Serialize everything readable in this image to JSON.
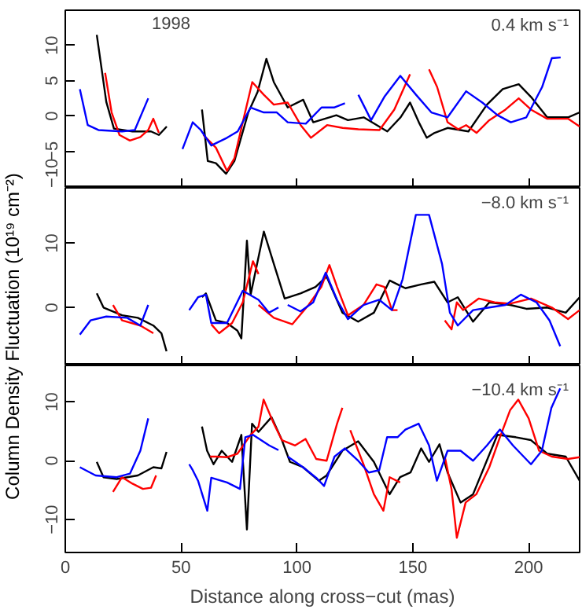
{
  "chart_data": [
    {
      "type": "line",
      "annotations": [
        "1998",
        "0.4 km s⁻¹"
      ],
      "xlim": [
        0,
        222
      ],
      "xticks": [
        0,
        50,
        100,
        150,
        200
      ],
      "ylim": [
        -10.2,
        15
      ],
      "yticks": [
        -10,
        -5,
        0,
        5,
        10
      ],
      "tick_labels": "y",
      "grid": false,
      "series": [
        {
          "color": "#000000",
          "x": [
            13.6,
            17.7,
            21,
            29,
            37,
            40.4,
            43.8,
            null,
            59,
            61.5,
            65,
            69.4,
            73,
            79,
            83,
            86.8,
            90,
            96,
            102.7,
            107,
            117,
            122,
            128.8,
            139,
            144.7,
            148.8,
            152.6,
            156,
            159.4,
            165,
            174,
            182,
            188.8,
            195.7,
            201,
            208,
            217,
            222
          ],
          "values": [
            11.5,
            2,
            -1.8,
            -2.2,
            -2.2,
            -2.7,
            -1.5,
            null,
            0.9,
            -6.4,
            -6.7,
            -8.2,
            -6.4,
            0.5,
            3.4,
            8.1,
            4.8,
            1.2,
            2.3,
            -0.9,
            0.1,
            -0.6,
            -0.2,
            -2.2,
            -0.2,
            1.9,
            -0.9,
            -3.1,
            -2.4,
            -1.7,
            -2.2,
            1.6,
            3.8,
            4.5,
            2.7,
            -0.2,
            -0.2,
            0.5
          ]
        },
        {
          "color": "#ff0000",
          "x": [
            17.2,
            20,
            23.4,
            27.9,
            32.4,
            35.8,
            38,
            40.4,
            null,
            59.6,
            65,
            69.8,
            73,
            76.6,
            80.7,
            85.7,
            90,
            96,
            101.6,
            106,
            113,
            119.7,
            126.5,
            135.6,
            142,
            148.8,
            null,
            157,
            160.5,
            165,
            169.6,
            173,
            177.5,
            183,
            190,
            195.7,
            201,
            208,
            217,
            222
          ],
          "values": [
            6.1,
            0.5,
            -2.7,
            -3.5,
            -3,
            -2,
            -0.4,
            -2.4,
            null,
            -2.7,
            -4.5,
            -7.8,
            -6,
            -0.9,
            4.8,
            3,
            1.6,
            1.9,
            -1.3,
            -3.1,
            -1.3,
            -1.7,
            -1.9,
            -2,
            0.9,
            5.9,
            null,
            6.6,
            4.1,
            -0.9,
            -1.9,
            -1.3,
            -2.4,
            -0.6,
            0.9,
            2.5,
            0.9,
            -0.4,
            -0.4,
            -1.5
          ]
        },
        {
          "color": "#0000ff",
          "x": [
            6.3,
            9.7,
            14.3,
            24.5,
            30,
            35.8,
            null,
            50.6,
            55,
            58.5,
            63,
            69.8,
            74.4,
            80,
            85.7,
            91.3,
            96,
            103.8,
            110.6,
            116,
            120.7,
            null,
            126.5,
            132,
            137.7,
            144.6,
            151.4,
            158,
            165,
            173,
            180,
            186.6,
            192.3,
            199,
            205.8,
            210,
            213.8
          ],
          "values": [
            3.8,
            -1.3,
            -2,
            -2.2,
            -2,
            2.5,
            null,
            -4.7,
            -0.9,
            -2,
            -4.2,
            -3.1,
            -2.2,
            1.2,
            0.5,
            0.5,
            -0.9,
            -1.1,
            1.2,
            1.2,
            1.8,
            null,
            3,
            -0.6,
            2.7,
            5.7,
            3,
            0.5,
            -0.2,
            3.5,
            1.9,
            0.1,
            -0.9,
            -0.2,
            4.1,
            8.2,
            8.3
          ]
        }
      ]
    },
    {
      "type": "line",
      "annotations": [
        "−8.0 km s⁻¹"
      ],
      "ylabel": "Column Density Fluctuation (10¹⁹ cm⁻²)",
      "xlim": [
        0,
        222
      ],
      "xticks": [
        0,
        50,
        100,
        150,
        200
      ],
      "ylim": [
        -9,
        18.6
      ],
      "yticks": [
        0,
        10
      ],
      "tick_labels": "y",
      "grid": false,
      "series": [
        {
          "color": "#000000",
          "x": [
            13.6,
            16.5,
            24.5,
            31.3,
            38,
            41.5,
            43.7,
            null,
            59,
            60.7,
            65,
            69.8,
            74.3,
            76,
            78.4,
            80,
            85.7,
            90,
            94.7,
            101.5,
            108,
            112.8,
            119.6,
            126.4,
            133.2,
            140,
            146.8,
            153.6,
            159.3,
            165,
            169.4,
            176,
            183,
            192,
            199,
            208,
            216,
            222
          ],
          "values": [
            2.2,
            0,
            -1.2,
            -1.6,
            -2.8,
            -4,
            -6.8,
            null,
            1.6,
            2.2,
            -2,
            -2.4,
            -3.6,
            -4.8,
            10.4,
            2,
            11.8,
            6.8,
            1.4,
            2.2,
            3.2,
            4.8,
            -0.8,
            -2.2,
            -0.8,
            4.2,
            3,
            3.6,
            4,
            0.8,
            1.6,
            -2.2,
            0.8,
            0.4,
            -0.2,
            0,
            -0.8,
            1.6
          ]
        },
        {
          "color": "#ff0000",
          "x": [
            20.6,
            24.5,
            32.4,
            38,
            null,
            63,
            66.4,
            72,
            76.6,
            81,
            83.4,
            null,
            83.4,
            90,
            98,
            105,
            110.5,
            114,
            117.3,
            122,
            128.7,
            134.3,
            137.7,
            141,
            143.4,
            null,
            163.8,
            166.7,
            169,
            171.7,
            178.5,
            185.3,
            192,
            201,
            210,
            217,
            222
          ],
          "values": [
            0.4,
            -2,
            -2.8,
            -4,
            null,
            -2.6,
            -4,
            -2.4,
            0.8,
            7.2,
            5.2,
            null,
            0.4,
            -1.6,
            -2.6,
            0.4,
            3.2,
            6.6,
            3.2,
            -1.2,
            0.4,
            3.6,
            3.2,
            -0.4,
            -0.4,
            null,
            -2,
            -3.4,
            0.8,
            -0.4,
            1.4,
            0.8,
            0.6,
            1.4,
            0,
            -1.8,
            -0.4
          ]
        },
        {
          "color": "#0000ff",
          "x": [
            6.3,
            10.9,
            17.7,
            26.7,
            32.4,
            35.8,
            null,
            53.5,
            57.3,
            60.7,
            63,
            69.8,
            76.6,
            83.4,
            87.9,
            92,
            null,
            96,
            101.5,
            107,
            112.4,
            117.3,
            122,
            128.7,
            135.5,
            141,
            145.6,
            151.3,
            157,
            162.6,
            166,
            169.4,
            176,
            183,
            190,
            196.6,
            203.4,
            209,
            213.6
          ],
          "values": [
            -4.2,
            -2,
            -1.4,
            -1.6,
            -2.8,
            0.4,
            null,
            -0.4,
            1.6,
            2,
            -2.4,
            -2.4,
            2.6,
            1.2,
            -0.8,
            0,
            null,
            0.4,
            -0.6,
            0.8,
            5.4,
            1.2,
            -1.8,
            0.4,
            1.2,
            -0.4,
            4.4,
            14.4,
            14.4,
            6.8,
            -0.8,
            -2.8,
            -0.4,
            0,
            0.4,
            2,
            0.8,
            -2,
            -6
          ]
        }
      ]
    },
    {
      "type": "line",
      "annotations": [
        "−10.4 km s⁻¹"
      ],
      "xlabel": "Distance along cross−cut (mas)",
      "xlim": [
        0,
        222
      ],
      "xticks": [
        0,
        50,
        100,
        150,
        200
      ],
      "ylim": [
        -15.6,
        16.2
      ],
      "yticks": [
        -10,
        0,
        10
      ],
      "grid": false,
      "series": [
        {
          "color": "#000000",
          "x": [
            13.6,
            16.5,
            22.2,
            31.3,
            38,
            41.5,
            43.7,
            null,
            59,
            61.2,
            64,
            67.5,
            72,
            76,
            78.4,
            80.6,
            83.4,
            89,
            93.5,
            97,
            102.6,
            109.4,
            112.8,
            119.6,
            126.4,
            133.2,
            140,
            144.5,
            149,
            153.6,
            157,
            161.5,
            165,
            170.6,
            176,
            186.5,
            194.4,
            201,
            208,
            216,
            222
          ],
          "values": [
            -0.2,
            -2.8,
            -3.1,
            -2.5,
            -1.1,
            -1.3,
            1.5,
            null,
            5.8,
            1.7,
            -0.6,
            1.7,
            -0.2,
            4.4,
            -11.7,
            6.3,
            4.9,
            7.4,
            3.5,
            -0.2,
            -1.1,
            -3.4,
            -2.5,
            1.7,
            3.3,
            -0.2,
            -5.7,
            -2.8,
            -2,
            2.1,
            -0.2,
            2.8,
            -2,
            -7.1,
            -5.7,
            4.4,
            4,
            3.5,
            1.2,
            0.7,
            -3.4
          ]
        },
        {
          "color": "#ff0000",
          "x": [
            20.6,
            24.5,
            29,
            33.5,
            37,
            39.2,
            null,
            62.5,
            65.2,
            69.8,
            74.3,
            80,
            83.4,
            85.6,
            90,
            93.5,
            99.2,
            103.7,
            108.3,
            112.8,
            117.3,
            119.6,
            null,
            123,
            128.7,
            133.2,
            137.3,
            140,
            144.5,
            null,
            163.8,
            166.7,
            169,
            172.8,
            177.4,
            183,
            187.6,
            192,
            195.5,
            200,
            204.5,
            210,
            217,
            222
          ],
          "values": [
            -5.3,
            -2.8,
            -3.9,
            -4.8,
            -4.6,
            -2.5,
            null,
            0.7,
            0.7,
            0.6,
            1.2,
            4.4,
            5.8,
            10.4,
            6.3,
            3.5,
            2.6,
            3.7,
            0.3,
            0,
            6.3,
            9,
            null,
            5.2,
            -0.6,
            -5.7,
            -8.5,
            -2.8,
            -3.7,
            null,
            0.7,
            -4.8,
            -13.1,
            -7.1,
            -5.7,
            -1.1,
            4,
            8.6,
            10.4,
            7.2,
            1.7,
            0.7,
            0.3,
            0.6
          ]
        },
        {
          "color": "#0000ff",
          "x": [
            6.3,
            13.1,
            22.2,
            27.9,
            32.4,
            35.8,
            null,
            53.5,
            55,
            57.3,
            61.3,
            63,
            69.8,
            75.4,
            77.7,
            81,
            84.5,
            88,
            92,
            null,
            96,
            102.6,
            108.3,
            111.7,
            116.2,
            120.7,
            126.4,
            131,
            135.5,
            138.9,
            143.4,
            146.8,
            152.5,
            157,
            160.4,
            165,
            170.6,
            176,
            182,
            187.6,
            193.2,
            201,
            205.7,
            209.8,
            213.6
          ],
          "values": [
            -1.1,
            -2.5,
            -2.8,
            -2.2,
            1.7,
            7.2,
            null,
            -0.6,
            -1.6,
            -3.4,
            -8.5,
            -2.9,
            -3.7,
            -4.8,
            4,
            4.4,
            3.5,
            2.6,
            1.8,
            null,
            0.7,
            -1.1,
            -2.9,
            -4.3,
            0.7,
            2.1,
            0,
            -2,
            -1.6,
            4,
            4,
            5.3,
            6.3,
            2.6,
            -3.4,
            1.7,
            1.7,
            0,
            2.6,
            5.3,
            2.6,
            -0.6,
            1.7,
            9,
            12.3
          ]
        }
      ]
    }
  ]
}
